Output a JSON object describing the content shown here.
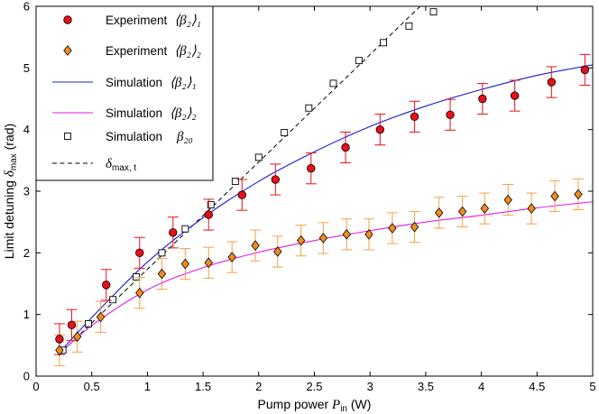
{
  "chart_data": {
    "type": "scatter",
    "xlabel": "Pump power",
    "xlabel_symbol": "P",
    "xlabel_sub": "in",
    "xlabel_unit": "(W)",
    "ylabel": "Limit detuning",
    "ylabel_symbol": "δ",
    "ylabel_sub": "max",
    "ylabel_unit": "(rad)",
    "xlim": [
      0,
      5
    ],
    "ylim": [
      0,
      6
    ],
    "xticks": [
      0,
      0.5,
      1,
      1.5,
      2,
      2.5,
      3,
      3.5,
      4,
      4.5,
      5
    ],
    "xtick_labels": [
      "0",
      "0.5",
      "1",
      "1.5",
      "2",
      "2.5",
      "3",
      "3.5",
      "4",
      "4.5",
      "5"
    ],
    "yticks": [
      0,
      1,
      2,
      3,
      4,
      5,
      6
    ],
    "ytick_labels": [
      "0",
      "1",
      "2",
      "3",
      "4",
      "5",
      "6"
    ],
    "grid": false,
    "legend_position": "top-left",
    "colors": {
      "exp1": "#e8101a",
      "exp1_error": "#e8101a",
      "exp2": "#f28c1e",
      "exp2_error": "#f5a04a",
      "sim1": "#1a1ad2",
      "sim2": "#e61ae6",
      "sim20": "#000000",
      "theory": "#000000"
    },
    "series": [
      {
        "key": "exp1",
        "name": "Experiment ⟨β2⟩1",
        "legend_prefix": "Experiment",
        "legend_math": "⟨β₂⟩₁",
        "marker": "circle",
        "x": [
          0.21,
          0.32,
          0.63,
          0.93,
          1.23,
          1.55,
          1.85,
          2.15,
          2.47,
          2.78,
          3.09,
          3.4,
          3.72,
          4.01,
          4.3,
          4.63,
          4.93
        ],
        "y": [
          0.6,
          0.83,
          1.48,
          2.0,
          2.33,
          2.62,
          2.94,
          3.19,
          3.37,
          3.71,
          4.0,
          4.21,
          4.24,
          4.5,
          4.55,
          4.77,
          4.97
        ],
        "err": [
          0.25,
          0.25,
          0.25,
          0.25,
          0.25,
          0.25,
          0.25,
          0.25,
          0.25,
          0.25,
          0.25,
          0.25,
          0.25,
          0.25,
          0.25,
          0.25,
          0.25
        ]
      },
      {
        "key": "exp2",
        "name": "Experiment ⟨β2⟩2",
        "legend_prefix": "Experiment",
        "legend_math": "⟨β₂⟩₂",
        "marker": "diamond",
        "x": [
          0.21,
          0.37,
          0.58,
          0.93,
          1.13,
          1.34,
          1.55,
          1.76,
          1.97,
          2.17,
          2.38,
          2.58,
          2.79,
          2.99,
          3.2,
          3.4,
          3.62,
          3.83,
          4.03,
          4.24,
          4.45,
          4.66,
          4.87
        ],
        "y": [
          0.42,
          0.64,
          0.96,
          1.35,
          1.66,
          1.82,
          1.84,
          1.93,
          2.12,
          2.02,
          2.2,
          2.24,
          2.3,
          2.3,
          2.4,
          2.42,
          2.65,
          2.67,
          2.72,
          2.86,
          2.72,
          2.92,
          2.95
        ],
        "err": [
          0.25,
          0.25,
          0.25,
          0.25,
          0.25,
          0.25,
          0.25,
          0.25,
          0.25,
          0.25,
          0.25,
          0.25,
          0.25,
          0.25,
          0.25,
          0.25,
          0.25,
          0.25,
          0.25,
          0.25,
          0.25,
          0.25,
          0.25
        ]
      },
      {
        "key": "sim1",
        "name": "Simulation ⟨β2⟩1",
        "legend_prefix": "Simulation",
        "legend_math": "⟨β₂⟩₁",
        "marker": "line",
        "x": [
          0.2,
          0.5,
          1.0,
          1.5,
          2.0,
          2.5,
          3.0,
          3.5,
          4.0,
          4.5,
          5.0
        ],
        "y": [
          0.36,
          0.95,
          1.85,
          2.57,
          3.16,
          3.64,
          4.05,
          4.38,
          4.65,
          4.88,
          5.05
        ]
      },
      {
        "key": "sim2",
        "name": "Simulation ⟨β2⟩2",
        "legend_prefix": "Simulation",
        "legend_math": "⟨β₂⟩₂",
        "marker": "line",
        "x": [
          0.2,
          0.5,
          1.0,
          1.5,
          2.0,
          2.5,
          3.0,
          3.5,
          4.0,
          4.5,
          5.0
        ],
        "y": [
          0.34,
          0.82,
          1.4,
          1.76,
          2.01,
          2.2,
          2.36,
          2.5,
          2.61,
          2.73,
          2.83
        ]
      },
      {
        "key": "sim20",
        "name": "Simulation β20",
        "legend_prefix": "Simulation",
        "legend_math": "β₂₀",
        "marker": "square",
        "x": [
          0.24,
          0.47,
          0.69,
          0.9,
          1.13,
          1.34,
          1.57,
          1.79,
          2.0,
          2.23,
          2.45,
          2.67,
          2.9,
          3.12,
          3.35,
          3.57
        ],
        "y": [
          0.42,
          0.85,
          1.24,
          1.61,
          2.0,
          2.39,
          2.78,
          3.16,
          3.55,
          3.95,
          4.35,
          4.75,
          5.12,
          5.41,
          5.68,
          5.91
        ]
      },
      {
        "key": "theory",
        "name": "δmax,t",
        "legend_prefix": "",
        "legend_math": "δ",
        "legend_sub": "max, t",
        "marker": "dashed",
        "x": [
          0.2,
          3.45
        ],
        "y": [
          0.34,
          6.0
        ]
      }
    ]
  }
}
